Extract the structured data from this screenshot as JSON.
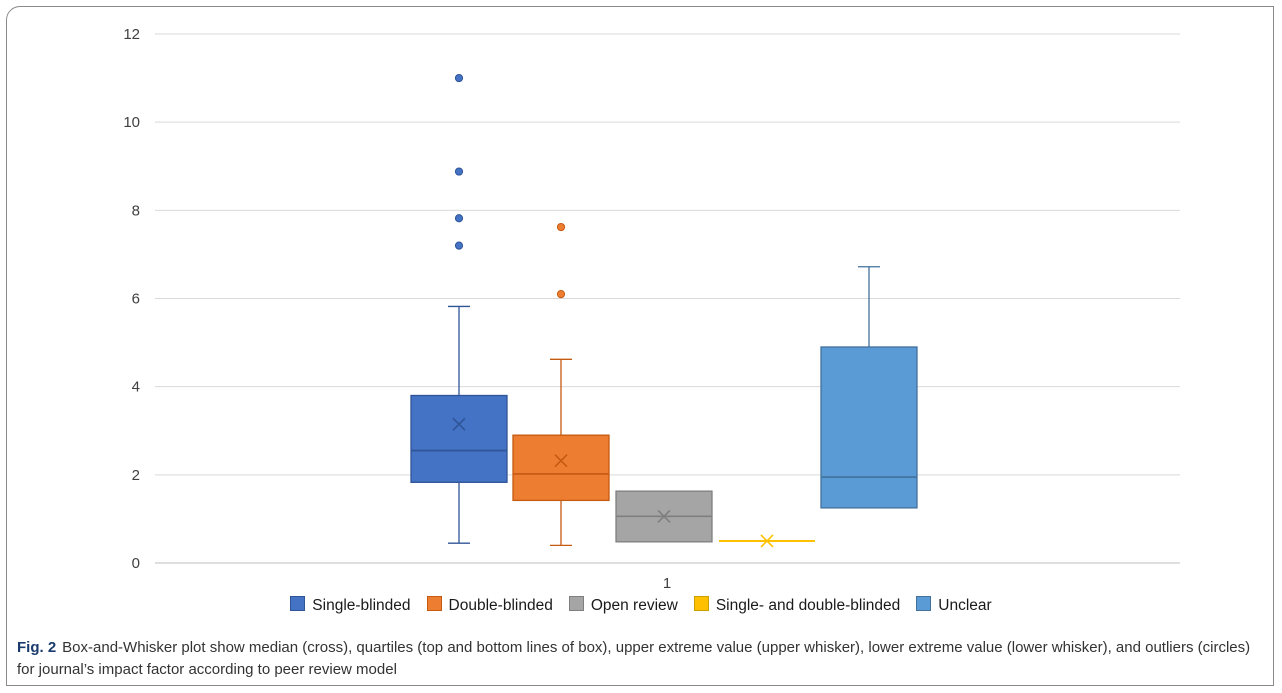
{
  "chart_data": {
    "type": "boxplot",
    "categories": [
      "1"
    ],
    "ylim": [
      0,
      12
    ],
    "yticks": [
      0,
      2,
      4,
      6,
      8,
      10,
      12
    ],
    "grid": true,
    "legend_position": "bottom",
    "series": [
      {
        "name": "Single-blinded",
        "color": "#4472c4",
        "edge": "#2f5597",
        "min": 0.45,
        "q1": 1.83,
        "median": 2.55,
        "q3": 3.8,
        "max": 5.82,
        "mean": 3.15,
        "outliers": [
          7.2,
          7.82,
          8.88,
          11.0
        ]
      },
      {
        "name": "Double-blinded",
        "color": "#ed7d31",
        "edge": "#c55a11",
        "min": 0.4,
        "q1": 1.42,
        "median": 2.02,
        "q3": 2.9,
        "max": 4.62,
        "mean": 2.32,
        "outliers": [
          6.1,
          7.62
        ]
      },
      {
        "name": "Open review",
        "color": "#a5a5a5",
        "edge": "#7f7f7f",
        "min": 0.48,
        "q1": 0.48,
        "median": 1.06,
        "q3": 1.63,
        "max": 1.63,
        "mean": 1.06,
        "outliers": []
      },
      {
        "name": "Single- and double-blinded",
        "color": "#ffc000",
        "edge": "#c9a000",
        "min": 0.5,
        "q1": 0.5,
        "median": 0.5,
        "q3": 0.5,
        "max": 0.5,
        "mean": 0.5,
        "outliers": []
      },
      {
        "name": "Unclear",
        "color": "#5b9bd5",
        "edge": "#41719c",
        "min": 1.25,
        "q1": 1.25,
        "median": 1.95,
        "q3": 4.9,
        "max": 6.72,
        "mean": null,
        "outliers": []
      }
    ]
  },
  "caption": {
    "label": "Fig. 2",
    "text": "Box-and-Whisker plot show median (cross), quartiles (top and bottom lines of box), upper extreme value (upper whisker), lower extreme value (lower whisker), and outliers (circles) for journal’s impact factor according to peer review model"
  }
}
